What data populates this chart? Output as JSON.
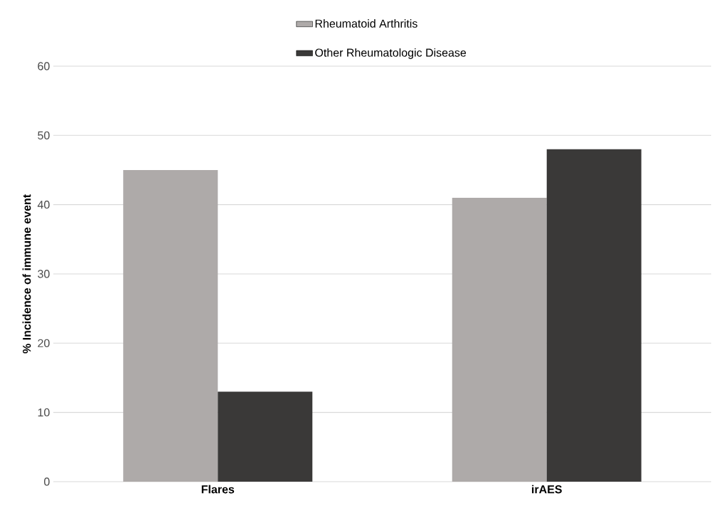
{
  "chart_data": {
    "type": "bar",
    "ylabel": "% Incidence of immune event",
    "categories": [
      "Flares",
      "irAES"
    ],
    "series": [
      {
        "name": "Rheumatoid Arthritis",
        "color": "#aeaaa9",
        "values": [
          45,
          41
        ]
      },
      {
        "name": "Other Rheumatologic Disease",
        "color": "#3a3938",
        "values": [
          13,
          48
        ]
      }
    ],
    "ylim": [
      0,
      60
    ],
    "yticks": [
      0,
      10,
      20,
      30,
      40,
      50,
      60
    ],
    "grid": "y",
    "legend": "top"
  }
}
